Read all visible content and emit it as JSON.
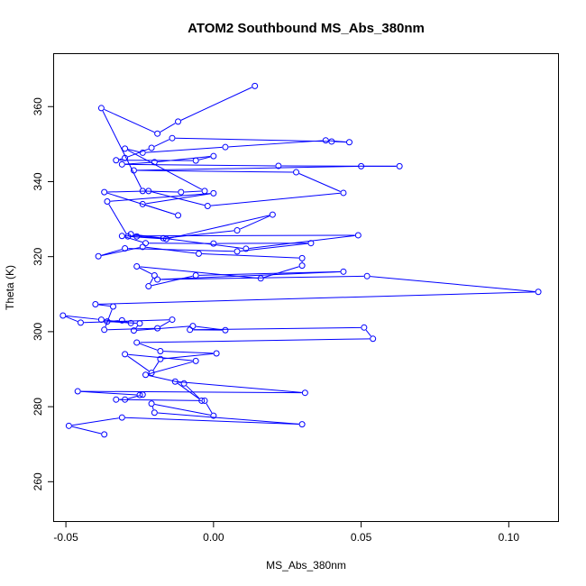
{
  "chart_data": {
    "type": "line",
    "title": "ATOM2 Southbound MS_Abs_380nm",
    "xlabel": "MS_Abs_380nm",
    "ylabel": "Theta (K)",
    "xlim": [
      -0.054,
      0.117
    ],
    "ylim": [
      249.5,
      374
    ],
    "xticks": [
      -0.05,
      0.0,
      0.05,
      0.1
    ],
    "xtick_labels": [
      "-0.05",
      "0.00",
      "0.05",
      "0.10"
    ],
    "yticks": [
      260,
      280,
      300,
      320,
      340,
      360
    ],
    "ytick_labels": [
      "260",
      "280",
      "300",
      "320",
      "340",
      "360"
    ],
    "grid": false,
    "color": "#0000ff",
    "marker": "open-circle",
    "series": [
      {
        "x": [
          0.014,
          -0.012,
          -0.019,
          -0.038,
          -0.024,
          -0.011,
          -0.003,
          -0.03,
          -0.024,
          0.004,
          0.038,
          0.046,
          0.04,
          -0.014,
          -0.021,
          -0.03,
          -0.033,
          -0.006,
          0.0,
          -0.02,
          -0.031,
          0.022,
          0.063,
          0.05,
          -0.027,
          0.028,
          0.044,
          -0.002,
          -0.022,
          -0.037,
          -0.012,
          -0.024,
          0.0,
          -0.036,
          -0.029,
          -0.016,
          0.02,
          0.008,
          -0.017,
          -0.026,
          -0.028,
          0.011,
          0.049,
          -0.031,
          -0.023,
          0.0,
          0.033,
          0.008,
          -0.03,
          -0.039,
          -0.024,
          -0.005,
          0.03,
          0.03,
          0.016,
          -0.026,
          -0.02,
          -0.022,
          -0.006,
          0.044,
          -0.019,
          0.052,
          0.11,
          -0.04,
          -0.034,
          -0.037,
          -0.019,
          -0.014,
          -0.045,
          -0.051,
          -0.038,
          -0.028,
          -0.031,
          -0.036,
          -0.025,
          -0.027,
          -0.007,
          0.004,
          -0.008,
          0.051,
          0.054,
          -0.026,
          -0.018,
          0.001,
          -0.018,
          -0.021,
          -0.03,
          -0.006,
          -0.023,
          -0.01,
          -0.004,
          -0.013,
          0.031,
          -0.046,
          -0.025,
          -0.024,
          -0.03,
          -0.033,
          -0.003,
          0.0,
          -0.021,
          -0.02,
          0.03,
          -0.031,
          -0.049,
          -0.037
        ],
        "y": [
          365.5,
          356.0,
          352.8,
          359.6,
          337.5,
          337.2,
          337.5,
          348.8,
          347.7,
          349.2,
          351.0,
          350.5,
          350.7,
          351.6,
          349.0,
          346.3,
          345.7,
          345.6,
          346.8,
          345.2,
          344.6,
          344.2,
          344.1,
          344.1,
          343.0,
          342.5,
          337.0,
          333.5,
          337.5,
          337.2,
          331.0,
          334.0,
          336.9,
          334.7,
          325.4,
          324.7,
          331.2,
          327.0,
          324.9,
          325.4,
          326.0,
          322.1,
          325.7,
          325.5,
          323.6,
          323.5,
          323.6,
          321.4,
          322.2,
          320.1,
          322.6,
          320.8,
          319.6,
          317.6,
          314.2,
          317.4,
          315.0,
          312.1,
          315.0,
          316.0,
          313.9,
          314.8,
          310.6,
          307.3,
          306.7,
          300.5,
          300.9,
          303.2,
          302.4,
          304.3,
          303.2,
          302.3,
          303.0,
          302.7,
          302.2,
          300.3,
          301.5,
          300.4,
          300.5,
          301.1,
          298.1,
          297.1,
          294.8,
          294.2,
          292.7,
          289.0,
          294.0,
          292.2,
          288.5,
          286.2,
          281.6,
          286.7,
          283.7,
          284.1,
          283.1,
          283.2,
          281.9,
          281.9,
          281.6,
          277.6,
          280.8,
          278.4,
          275.3,
          277.1,
          274.9,
          272.6
        ]
      }
    ]
  }
}
